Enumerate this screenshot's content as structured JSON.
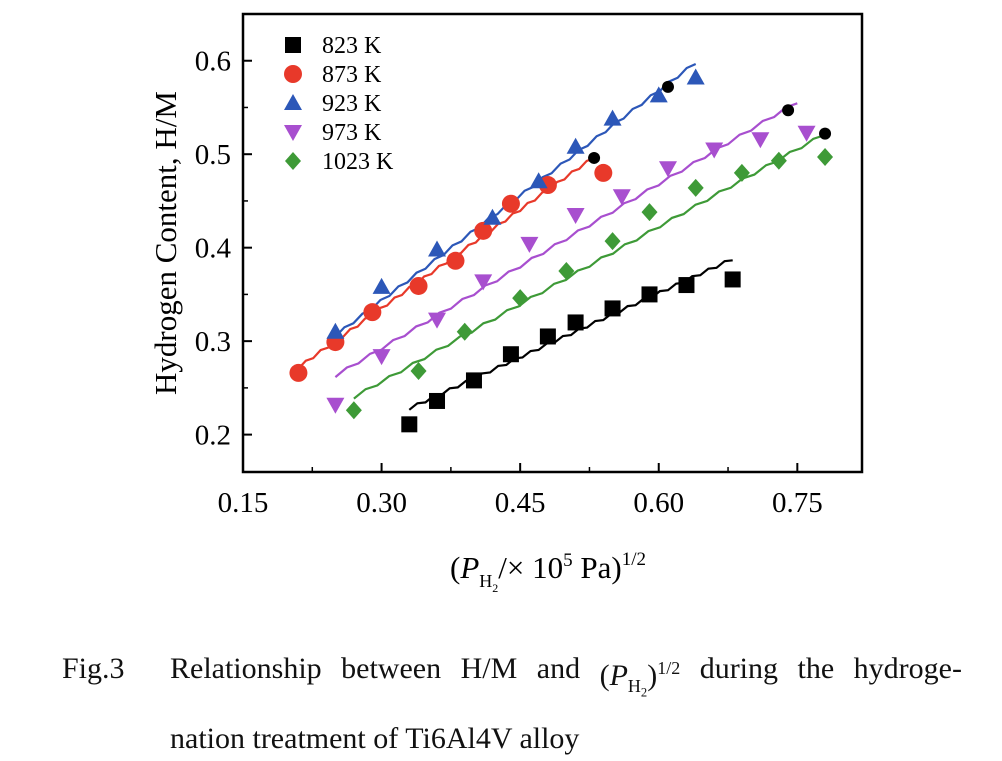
{
  "chart_data": {
    "type": "scatter",
    "xlim": [
      0.15,
      0.82
    ],
    "ylim": [
      0.16,
      0.65
    ],
    "x_ticks": [
      0.15,
      0.3,
      0.45,
      0.6,
      0.75
    ],
    "x_tick_labels": [
      "0.15",
      "0.30",
      "0.45",
      "0.60",
      "0.75"
    ],
    "y_ticks": [
      0.2,
      0.3,
      0.4,
      0.5,
      0.6
    ],
    "y_tick_labels": [
      "0.2",
      "0.3",
      "0.4",
      "0.5",
      "0.6"
    ],
    "ylabel": "Hydrogen Content, H/M",
    "xlabel": {
      "open": "(P",
      "sub": "H",
      "subsub": "2",
      "mid": "/× 10",
      "exp": "5",
      "unit": " Pa)",
      "power": "1/2"
    },
    "legend_position": "top-left",
    "series": [
      {
        "name": "823 K",
        "marker": "square",
        "color": "#000000",
        "x": [
          0.33,
          0.36,
          0.4,
          0.44,
          0.48,
          0.51,
          0.55,
          0.59,
          0.63,
          0.68
        ],
        "y": [
          0.211,
          0.236,
          0.258,
          0.286,
          0.305,
          0.32,
          0.335,
          0.35,
          0.36,
          0.366
        ],
        "fit": [
          [
            0.33,
            0.228
          ],
          [
            0.68,
            0.388
          ]
        ]
      },
      {
        "name": "873 K",
        "marker": "circle",
        "color": "#e8392a",
        "x": [
          0.21,
          0.25,
          0.29,
          0.34,
          0.38,
          0.41,
          0.44,
          0.48,
          0.54
        ],
        "y": [
          0.266,
          0.299,
          0.331,
          0.359,
          0.386,
          0.418,
          0.447,
          0.467,
          0.48
        ],
        "fit": [
          [
            0.21,
            0.272
          ],
          [
            0.53,
            0.497
          ]
        ]
      },
      {
        "name": "923 K",
        "marker": "triangle-up",
        "color": "#2c57b8",
        "x": [
          0.25,
          0.3,
          0.36,
          0.42,
          0.47,
          0.51,
          0.55,
          0.6,
          0.64
        ],
        "y": [
          0.31,
          0.358,
          0.398,
          0.432,
          0.471,
          0.508,
          0.538,
          0.563,
          0.582
        ],
        "fit": [
          [
            0.25,
            0.306
          ],
          [
            0.64,
            0.598
          ]
        ]
      },
      {
        "name": "973 K",
        "marker": "triangle-down",
        "color": "#a84fcf",
        "x": [
          0.25,
          0.3,
          0.36,
          0.41,
          0.46,
          0.51,
          0.56,
          0.61,
          0.66,
          0.71,
          0.76
        ],
        "y": [
          0.232,
          0.284,
          0.323,
          0.364,
          0.404,
          0.435,
          0.455,
          0.485,
          0.505,
          0.516,
          0.523
        ],
        "fit": [
          [
            0.25,
            0.263
          ],
          [
            0.75,
            0.556
          ]
        ]
      },
      {
        "name": "1023 K",
        "marker": "diamond",
        "color": "#3e9a37",
        "x": [
          0.27,
          0.34,
          0.39,
          0.45,
          0.5,
          0.55,
          0.59,
          0.64,
          0.69,
          0.73,
          0.78
        ],
        "y": [
          0.226,
          0.268,
          0.31,
          0.346,
          0.375,
          0.407,
          0.438,
          0.464,
          0.48,
          0.493,
          0.497
        ],
        "fit": [
          [
            0.27,
            0.24
          ],
          [
            0.78,
            0.522
          ]
        ]
      }
    ],
    "endpoints": {
      "color": "#000000",
      "x": [
        0.53,
        0.61,
        0.74,
        0.78
      ],
      "y": [
        0.496,
        0.572,
        0.547,
        0.522
      ]
    }
  },
  "caption": {
    "label": "Fig.3",
    "line1_words": [
      "Relationship",
      "between",
      "H/M",
      "and"
    ],
    "p_open": "(",
    "p_symbol": "P",
    "p_sub": "H",
    "p_subsub": "2",
    "p_close": ")",
    "p_exp": "1/2",
    "line1_rest": [
      "during",
      "the",
      "hydroge-"
    ],
    "line2": "nation treatment of Ti6Al4V alloy"
  }
}
